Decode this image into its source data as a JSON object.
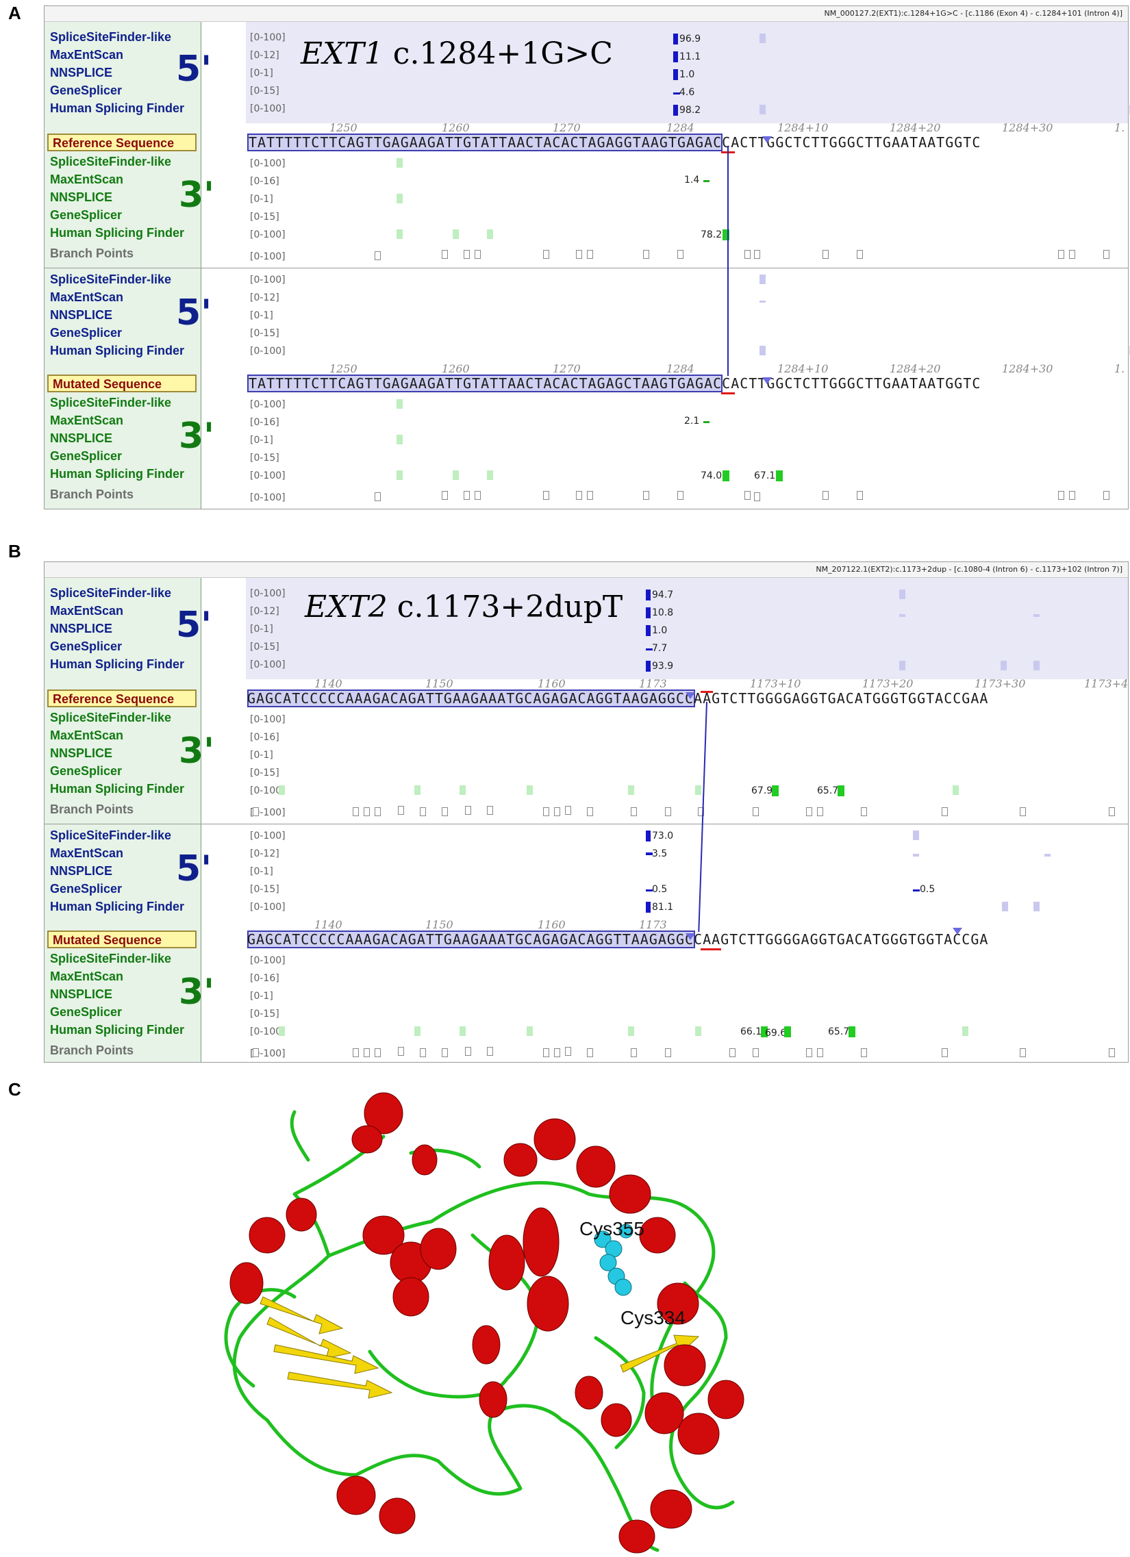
{
  "panels": {
    "a": {
      "letter": "A",
      "header": "NM_000127.2(EXT1):c.1284+1G>C - [c.1186 (Exon 4) - c.1284+101 (Intron 4)]",
      "title_gene": "EXT1",
      "title_variant": "c.1284+1G>C",
      "ref_ruler": [
        "1250",
        "1260",
        "1270",
        "1284",
        "1284+10",
        "1284+20",
        "1284+30",
        "1."
      ],
      "mut_ruler": [
        "1250",
        "1260",
        "1270",
        "1284",
        "1284+10",
        "1284+20",
        "1284+30",
        "1."
      ],
      "ref_seq": "TATTTTTCTTCAGTTGAGAAGATTGTATTAACTACACTAGAGGTAAGTGAGACCACTTGGCTCTTGGGCTTGAATAATGGTC",
      "mut_seq": "TATTTTTCTTCAGTTGAGAAGATTGTATTAACTACACTAGAGCTAAGTGAGACCACTTGGCTCTTGGGCTTGAATAATGGTC",
      "ref5_values": [
        "96.9",
        "11.1",
        "1.0",
        "4.6",
        "98.2"
      ],
      "ref3_values": [
        "1.4",
        "78.2"
      ],
      "mut3_values": [
        "2.1",
        "74.0",
        "67.1"
      ]
    },
    "b": {
      "letter": "B",
      "header": "NM_207122.1(EXT2):c.1173+2dup - [c.1080-4 (Intron 6) - c.1173+102 (Intron 7)]",
      "title_gene": "EXT2",
      "title_variant": "c.1173+2dupT",
      "ref_ruler": [
        "1140",
        "1150",
        "1160",
        "1173",
        "1173+10",
        "1173+20",
        "1173+30",
        "1173+4"
      ],
      "mut_ruler": [
        "1140",
        "1150",
        "1160",
        "1173"
      ],
      "ref_seq": "GAGCATCCCCCAAAGACAGATTGAAGAAATGCAGAGACAGGTAAGAGGCCAAGTCTTGGGGAGGTGACATGGGTGGTACCGAA",
      "mut_seq": "GAGCATCCCCCAAAGACAGATTGAAGAAATGCAGAGACAGGTTAAGAGGCCAAGTCTTGGGGAGGTGACATGGGTGGTACCGA",
      "ref5_values": [
        "94.7",
        "10.8",
        "1.0",
        "7.7",
        "93.9"
      ],
      "ref3_values": [
        "67.9",
        "65.7"
      ],
      "mut5_values": [
        "73.0",
        "3.5",
        "0.5",
        "81.1",
        "0.5"
      ],
      "mut3_values": [
        "66.1",
        "69.6",
        "65.7"
      ]
    },
    "c": {
      "letter": "C",
      "residue1": "Cys355",
      "residue2": "Cys334"
    }
  },
  "track_labels": {
    "five": [
      "SpliceSiteFinder-like",
      "MaxEntScan",
      "NNSPLICE",
      "GeneSplicer",
      "Human Splicing Finder"
    ],
    "three": [
      "SpliceSiteFinder-like",
      "MaxEntScan",
      "NNSPLICE",
      "GeneSplicer",
      "Human Splicing Finder",
      "Branch Points"
    ],
    "five_ranges": [
      "[0-100]",
      "[0-12]",
      "[0-1]",
      "[0-15]",
      "[0-100]"
    ],
    "three_ranges": [
      "[0-100]",
      "[0-16]",
      "[0-1]",
      "[0-15]",
      "[0-100]",
      "[0-100]"
    ],
    "ref_label": "Reference Sequence",
    "mut_label": "Mutated Sequence",
    "big5": "5'",
    "big3": "3'"
  },
  "colors": {
    "five_prime": "#0f1f8c",
    "three_prime": "#127a12",
    "alpha_helix": "#d10b0b",
    "beta_sheet": "#f2d60a",
    "coil": "#1fbf1f",
    "cysteine": "#25c8e0"
  }
}
